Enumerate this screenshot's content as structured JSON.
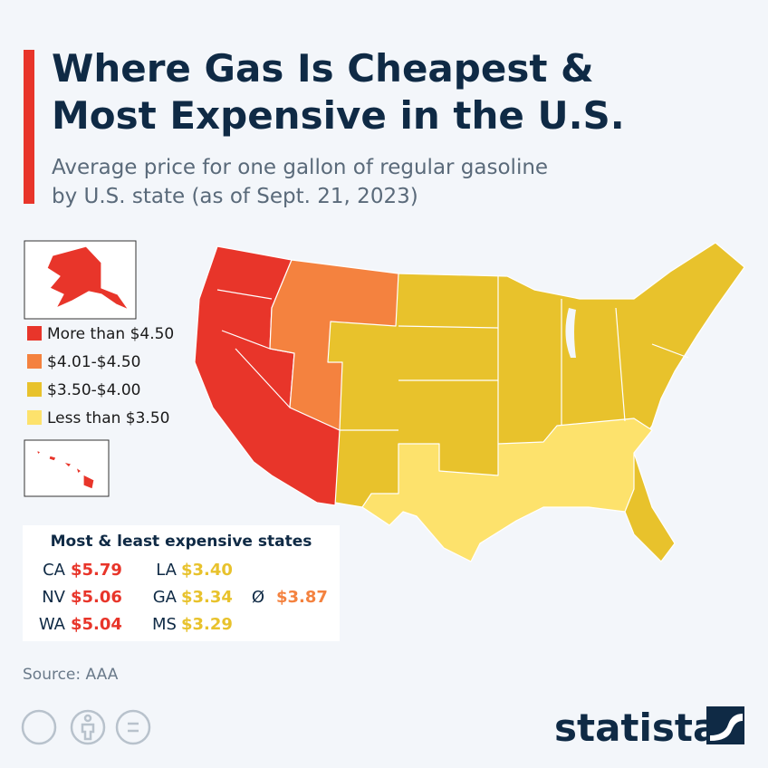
{
  "header": {
    "title": [
      "Where Gas Is Cheapest &",
      "Most Expensive in the U.S."
    ],
    "subtitle": [
      "Average price for one gallon of regular gasoline",
      "by U.S. state (as of Sept. 21, 2023)"
    ]
  },
  "legend": [
    {
      "label": "More than $4.50",
      "color": "#e8352a"
    },
    {
      "label": "$4.01-$4.50",
      "color": "#f4823f"
    },
    {
      "label": "$3.50-$4.00",
      "color": "#e8c22c"
    },
    {
      "label": "Less than $3.50",
      "color": "#fde26c"
    }
  ],
  "table": {
    "title": "Most & least expensive states",
    "rows": [
      [
        "CA",
        "$5.79",
        "LA",
        "$3.40"
      ],
      [
        "NV",
        "$5.06",
        "GA",
        "$3.34",
        "Ø",
        "$3.87"
      ],
      [
        "WA",
        "$5.04",
        "MS",
        "$3.29"
      ]
    ]
  },
  "source": "Source: AAA",
  "brand": "statista"
}
